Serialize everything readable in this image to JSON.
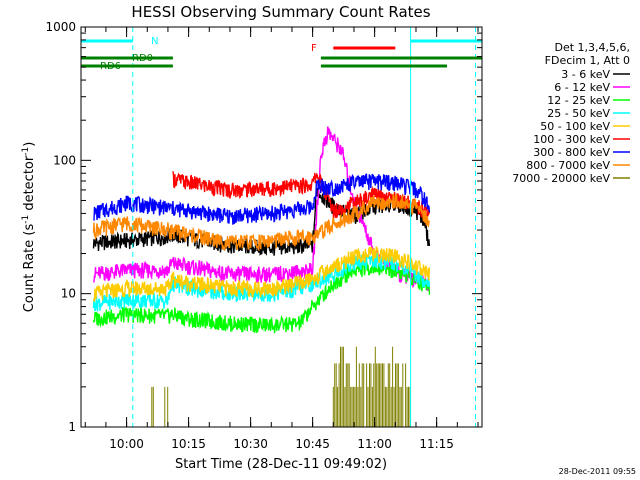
{
  "chart_data": {
    "type": "line",
    "title": "HESSI Observing Summary Count Rates",
    "xlabel": "Start Time (28-Dec-11 09:49:02)",
    "ylabel_main": "Count Rate (s",
    "ylabel_sup1": "-1",
    "ylabel_mid": " detector",
    "ylabel_sup2": "-1",
    "ylabel_end": ")",
    "yscale": "log",
    "ylim": [
      1,
      1000
    ],
    "xlim_minutes": [
      -11.03,
      85.97
    ],
    "x_tick_minutes": [
      0,
      15,
      30,
      45,
      60,
      75
    ],
    "x_tick_labels": [
      "10:00",
      "10:15",
      "10:30",
      "10:45",
      "11:00",
      "11:15"
    ],
    "y_tick_values": [
      1,
      10,
      100,
      1000
    ],
    "y_tick_labels": [
      "1",
      "10",
      "100",
      "1000"
    ],
    "grid": false,
    "legend_position": "right",
    "legend_header": [
      "Det 1,3,4,5,6,",
      "FDecim 1, Att 0"
    ],
    "footer_date": "28-Dec-2011 09:55",
    "series": [
      {
        "name": "3 - 6 keV",
        "color": "#000000",
        "x": [
          -8,
          0,
          10,
          11,
          15,
          25,
          35,
          45,
          46,
          50,
          55,
          60,
          65,
          70,
          72,
          73.3
        ],
        "y": [
          24,
          25,
          27,
          28,
          26,
          23,
          22,
          23,
          60,
          45,
          38,
          45,
          48,
          42,
          35,
          22
        ]
      },
      {
        "name": "6 - 12 keV",
        "color": "#ff00ff",
        "x": [
          -8,
          0,
          10,
          11,
          15,
          25,
          35,
          45,
          47,
          48.7,
          52,
          55,
          60,
          66,
          70,
          73.3
        ],
        "y": [
          14,
          15,
          15,
          17,
          16,
          14,
          14,
          15,
          110,
          165,
          120,
          50,
          20,
          14,
          13,
          12
        ]
      },
      {
        "name": "12 - 25 keV",
        "color": "#00ff00",
        "x": [
          -8,
          0,
          10,
          11,
          15,
          25,
          35,
          42,
          45,
          50,
          55,
          60,
          65,
          70,
          73.3
        ],
        "y": [
          6.5,
          7,
          6.8,
          7,
          6.5,
          6,
          5.8,
          6,
          8,
          12,
          15,
          16,
          15,
          13,
          11
        ]
      },
      {
        "name": "25 - 50 keV",
        "color": "#00ffff",
        "x": [
          -8,
          0,
          10,
          11,
          15,
          25,
          35,
          42,
          45,
          50,
          55,
          60,
          65,
          70,
          73.3
        ],
        "y": [
          8.5,
          9,
          8.8,
          12,
          11,
          10,
          10,
          11,
          12,
          14,
          17,
          18,
          17,
          14,
          12
        ]
      },
      {
        "name": "50 - 100 keV",
        "color": "#ffcc00",
        "x": [
          -8,
          0,
          10,
          11,
          15,
          25,
          35,
          42,
          45,
          50,
          55,
          60,
          65,
          70,
          73.3
        ],
        "y": [
          10,
          11,
          11,
          13,
          12,
          11,
          11,
          12,
          13,
          16,
          19,
          20,
          19,
          16,
          14
        ]
      },
      {
        "name": "100 - 300 keV",
        "color": "#ff0000",
        "x": [
          11.2,
          15,
          25,
          35,
          45,
          46,
          50,
          55,
          60,
          65,
          70,
          73.3
        ],
        "y": [
          73,
          68,
          60,
          62,
          66,
          80,
          42,
          48,
          55,
          52,
          46,
          40
        ]
      },
      {
        "name": "300 - 800 keV",
        "color": "#0000ff",
        "x": [
          -8,
          0,
          10,
          15,
          25,
          35,
          45,
          46,
          50,
          55,
          60,
          65,
          70,
          72,
          73.3
        ],
        "y": [
          40,
          48,
          44,
          42,
          38,
          40,
          45,
          65,
          62,
          68,
          70,
          68,
          60,
          52,
          42
        ]
      },
      {
        "name": "800 - 7000 keV",
        "color": "#ff8800",
        "x": [
          -8,
          0,
          10,
          15,
          25,
          35,
          45,
          50,
          55,
          60,
          65,
          70,
          73.3
        ],
        "y": [
          30,
          34,
          30,
          28,
          24,
          25,
          27,
          33,
          40,
          48,
          50,
          44,
          36
        ]
      },
      {
        "name": "7000 - 20000 keV",
        "color": "#808000",
        "x": [
          0,
          1,
          2,
          3,
          4,
          5,
          6,
          7,
          8,
          9,
          10,
          51,
          52,
          54,
          56,
          58,
          60,
          62,
          64,
          66,
          68,
          70
        ],
        "y": [
          1,
          2,
          1,
          2,
          1,
          1,
          2,
          1,
          1,
          2,
          1,
          2,
          3,
          2,
          3,
          2,
          3,
          2,
          3,
          2,
          2,
          1
        ]
      }
    ],
    "annotations": {
      "flags": [
        {
          "label": "N",
          "color": "#00ffff",
          "row": "top",
          "segments": [
            [
              -11.03,
              1.5
            ],
            [
              68.7,
              85.97
            ]
          ]
        },
        {
          "label": "F",
          "color": "#ff0000",
          "row": "top2",
          "segments": [
            [
              50,
              65
            ]
          ]
        },
        {
          "label": "RD0",
          "color": "#008000",
          "row": "rd0",
          "segments": [
            [
              -11.03,
              11.2
            ],
            [
              47,
              85.97
            ]
          ]
        },
        {
          "label": "RD6",
          "color": "#008000",
          "row": "rd6",
          "segments": [
            [
              -11.03,
              11.2
            ],
            [
              47,
              77.5
            ]
          ]
        }
      ],
      "vlines": [
        {
          "x": 1.5,
          "color": "#00ffff",
          "style": "dashed"
        },
        {
          "x": 68.7,
          "color": "#00ffff",
          "style": "solid"
        },
        {
          "x": 84.4,
          "color": "#00ffff",
          "style": "dashed"
        }
      ]
    }
  }
}
